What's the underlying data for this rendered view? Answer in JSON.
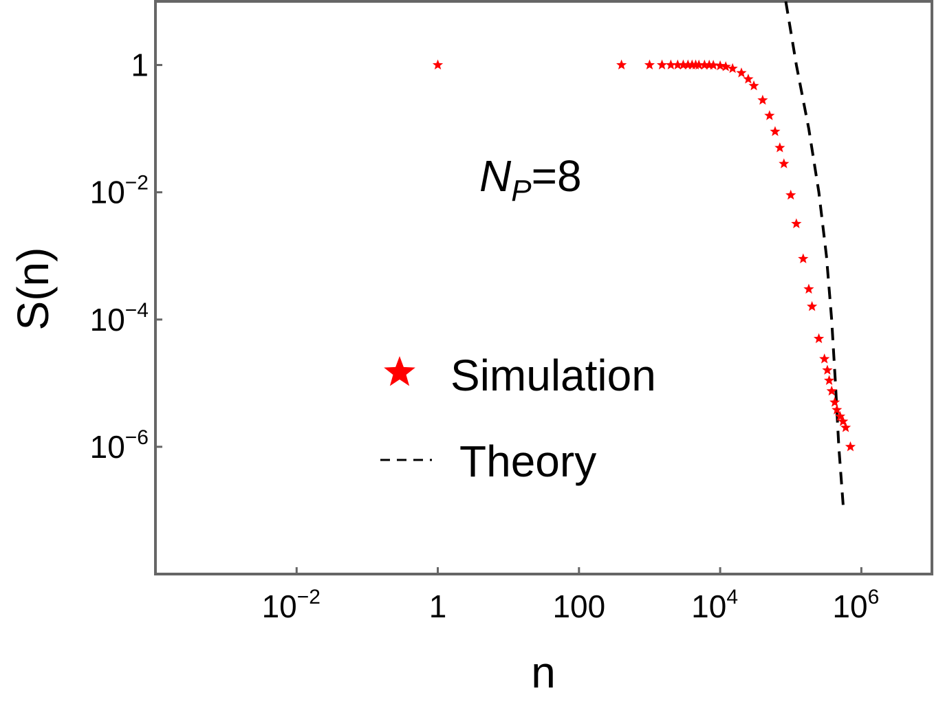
{
  "chart_data": {
    "type": "scatter",
    "x_scale": "log",
    "y_scale": "log",
    "xlim": [
      0.0001,
      10000000
    ],
    "ylim": [
      1e-08,
      10
    ],
    "xlabel": "n",
    "ylabel": "S(n)",
    "x_ticks": [
      {
        "value": 0.01,
        "base": "10",
        "exp": "−2"
      },
      {
        "value": 1,
        "base": "1",
        "exp": ""
      },
      {
        "value": 100,
        "base": "100",
        "exp": ""
      },
      {
        "value": 10000,
        "base": "10",
        "exp": "4"
      },
      {
        "value": 1000000,
        "base": "10",
        "exp": "6"
      }
    ],
    "y_ticks": [
      {
        "value": 1,
        "base": "1",
        "exp": ""
      },
      {
        "value": 0.01,
        "base": "10",
        "exp": "−2"
      },
      {
        "value": 0.0001,
        "base": "10",
        "exp": "−4"
      },
      {
        "value": 1e-06,
        "base": "10",
        "exp": "−6"
      }
    ],
    "annotation": {
      "main": "N",
      "sub": "P",
      "rest": "=8"
    },
    "legend_position": "center",
    "grid": false,
    "series": [
      {
        "name": "Simulation",
        "kind": "markers",
        "marker": "star",
        "color": "#ff0000",
        "points": [
          [
            1,
            1
          ],
          [
            400,
            1
          ],
          [
            1000,
            1
          ],
          [
            1500,
            1
          ],
          [
            2000,
            1
          ],
          [
            2500,
            1
          ],
          [
            3000,
            1
          ],
          [
            3500,
            1
          ],
          [
            4000,
            1
          ],
          [
            4500,
            1
          ],
          [
            5000,
            0.999
          ],
          [
            6000,
            0.998
          ],
          [
            7000,
            0.995
          ],
          [
            8000,
            0.99
          ],
          [
            10000,
            0.97
          ],
          [
            12000,
            0.94
          ],
          [
            15000,
            0.88
          ],
          [
            20000,
            0.75
          ],
          [
            25000,
            0.6
          ],
          [
            30000,
            0.47
          ],
          [
            40000,
            0.28
          ],
          [
            50000,
            0.16
          ],
          [
            60000,
            0.09
          ],
          [
            70000,
            0.05
          ],
          [
            80000,
            0.028
          ],
          [
            100000,
            0.009
          ],
          [
            120000,
            0.0032
          ],
          [
            150000,
            0.0009
          ],
          [
            180000,
            0.0003
          ],
          [
            200000,
            0.00016
          ],
          [
            250000,
            5e-05
          ],
          [
            300000,
            2.4e-05
          ],
          [
            330000,
            1.6e-05
          ],
          [
            350000,
            1.1e-05
          ],
          [
            380000,
            7.5e-06
          ],
          [
            420000,
            5e-06
          ],
          [
            450000,
            3.8e-06
          ],
          [
            500000,
            3e-06
          ],
          [
            550000,
            2.5e-06
          ],
          [
            600000,
            2e-06
          ],
          [
            700000,
            1e-06
          ]
        ]
      },
      {
        "name": "Theory",
        "kind": "line",
        "dash": "dashed",
        "color": "#000000",
        "points": [
          [
            85000,
            10
          ],
          [
            120000,
            1
          ],
          [
            180000,
            0.1
          ],
          [
            250000,
            0.01
          ],
          [
            320000,
            0.001
          ],
          [
            380000,
            0.0001
          ],
          [
            430000,
            1e-05
          ],
          [
            480000,
            1e-06
          ],
          [
            560000,
            1e-07
          ]
        ]
      }
    ]
  }
}
